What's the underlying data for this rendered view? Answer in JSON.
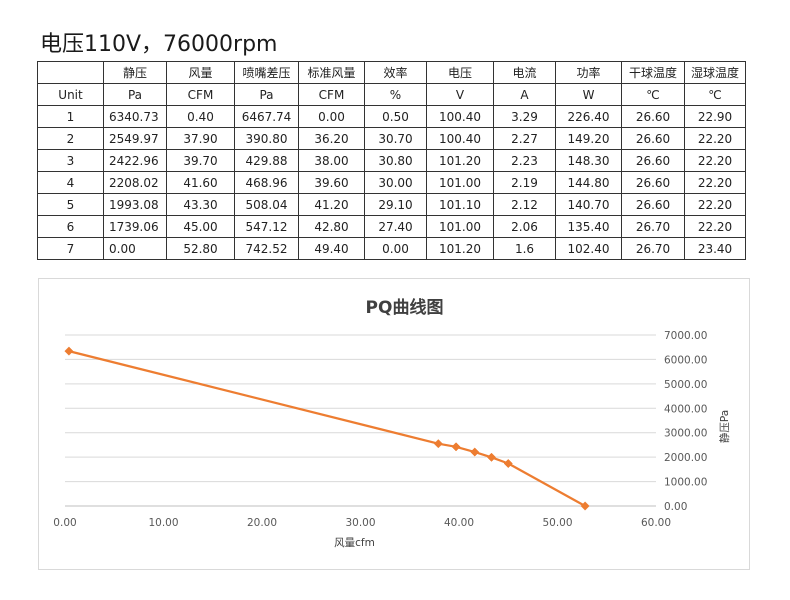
{
  "page_title": "电压110V，76000rpm",
  "table": {
    "header_cn": [
      "",
      "静压",
      "风量",
      "喷嘴差压",
      "标准风量",
      "效率",
      "电压",
      "电流",
      "功率",
      "干球温度",
      "湿球温度"
    ],
    "header_unit": [
      "Unit",
      "Pa",
      "CFM",
      "Pa",
      "CFM",
      "%",
      "V",
      "A",
      "W",
      "℃",
      "℃"
    ],
    "rows": [
      [
        "1",
        "6340.73",
        "0.40",
        "6467.74",
        "0.00",
        "0.50",
        "100.40",
        "3.29",
        "226.40",
        "26.60",
        "22.90"
      ],
      [
        "2",
        "2549.97",
        "37.90",
        "390.80",
        "36.20",
        "30.70",
        "100.40",
        "2.27",
        "149.20",
        "26.60",
        "22.20"
      ],
      [
        "3",
        "2422.96",
        "39.70",
        "429.88",
        "38.00",
        "30.80",
        "101.20",
        "2.23",
        "148.30",
        "26.60",
        "22.20"
      ],
      [
        "4",
        "2208.02",
        "41.60",
        "468.96",
        "39.60",
        "30.00",
        "101.00",
        "2.19",
        "144.80",
        "26.60",
        "22.20"
      ],
      [
        "5",
        "1993.08",
        "43.30",
        "508.04",
        "41.20",
        "29.10",
        "101.10",
        "2.12",
        "140.70",
        "26.60",
        "22.20"
      ],
      [
        "6",
        "1739.06",
        "45.00",
        "547.12",
        "42.80",
        "27.40",
        "101.00",
        "2.06",
        "135.40",
        "26.70",
        "22.20"
      ],
      [
        "7",
        "0.00",
        "52.80",
        "742.52",
        "49.40",
        "0.00",
        "101.20",
        "1.6",
        "102.40",
        "26.70",
        "23.40"
      ]
    ]
  },
  "chart_data": {
    "type": "scatter",
    "title": "PQ曲线图",
    "xlabel": "风量cfm",
    "ylabel": "静压Pa",
    "xlim": [
      0,
      60
    ],
    "ylim": [
      0,
      7000
    ],
    "x_ticks": [
      "0.00",
      "10.00",
      "20.00",
      "30.00",
      "40.00",
      "50.00",
      "60.00"
    ],
    "y_ticks": [
      "0.00",
      "1000.00",
      "2000.00",
      "3000.00",
      "4000.00",
      "5000.00",
      "6000.00",
      "7000.00"
    ],
    "y_axis_side": "right",
    "grid": "horizontal",
    "legend": "none",
    "series": [
      {
        "x": [
          0.4,
          37.9,
          39.7,
          41.6,
          43.3,
          45.0,
          52.8
        ],
        "y": [
          6340.73,
          2549.97,
          2422.96,
          2208.02,
          1993.08,
          1739.06,
          0.0
        ],
        "color": "#ED7D31",
        "marker": "diamond",
        "line": "straight"
      }
    ]
  }
}
